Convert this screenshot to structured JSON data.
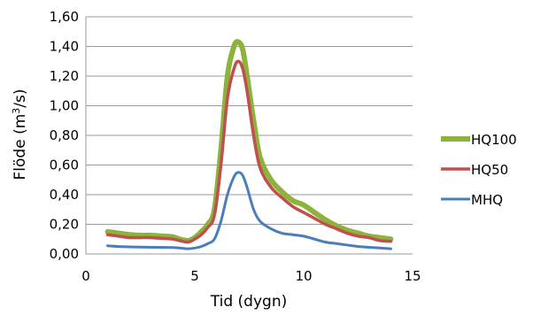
{
  "chart_data": {
    "type": "line",
    "xlabel": "Tid (dygn)",
    "ylabel_main": "Flöde (m",
    "ylabel_sup": "3",
    "ylabel_end": "/s)",
    "xlim": [
      0,
      15
    ],
    "ylim": [
      0,
      1.6
    ],
    "x_ticks": [
      "0",
      "5",
      "10",
      "15"
    ],
    "y_ticks": [
      "0,00",
      "0,20",
      "0,40",
      "0,60",
      "0,80",
      "1,00",
      "1,20",
      "1,40",
      "1,60"
    ],
    "grid": "horizontal",
    "legend_position": "right",
    "series": [
      {
        "name": "HQ100",
        "color": "#8DB33C",
        "x": [
          1,
          1.5,
          2,
          2.5,
          3,
          3.5,
          4,
          4.3,
          4.7,
          5,
          5.3,
          5.6,
          5.9,
          6.2,
          6.5,
          6.8,
          7,
          7.2,
          7.4,
          7.7,
          8,
          8.5,
          9,
          9.5,
          10,
          10.5,
          11,
          11.5,
          12,
          12.5,
          13,
          13.5,
          14
        ],
        "y": [
          0.15,
          0.14,
          0.13,
          0.125,
          0.125,
          0.12,
          0.115,
          0.1,
          0.09,
          0.11,
          0.15,
          0.2,
          0.3,
          0.7,
          1.2,
          1.4,
          1.43,
          1.38,
          1.2,
          0.9,
          0.65,
          0.5,
          0.42,
          0.36,
          0.33,
          0.28,
          0.23,
          0.19,
          0.16,
          0.14,
          0.12,
          0.11,
          0.1
        ]
      },
      {
        "name": "HQ50",
        "color": "#C0504D",
        "x": [
          1,
          1.5,
          2,
          2.5,
          3,
          3.5,
          4,
          4.3,
          4.7,
          5,
          5.3,
          5.6,
          5.9,
          6.2,
          6.5,
          6.8,
          7,
          7.2,
          7.4,
          7.7,
          8,
          8.5,
          9,
          9.5,
          10,
          10.5,
          11,
          11.5,
          12,
          12.5,
          13,
          13.5,
          14
        ],
        "y": [
          0.13,
          0.12,
          0.11,
          0.11,
          0.11,
          0.105,
          0.1,
          0.09,
          0.08,
          0.1,
          0.13,
          0.18,
          0.26,
          0.6,
          1.05,
          1.25,
          1.3,
          1.25,
          1.1,
          0.8,
          0.58,
          0.45,
          0.38,
          0.32,
          0.28,
          0.24,
          0.2,
          0.17,
          0.14,
          0.12,
          0.11,
          0.09,
          0.085
        ]
      },
      {
        "name": "MHQ",
        "color": "#4A7EBB",
        "x": [
          1,
          1.5,
          2,
          2.5,
          3,
          3.5,
          4,
          4.3,
          4.7,
          5,
          5.3,
          5.6,
          5.9,
          6.2,
          6.5,
          6.8,
          7,
          7.2,
          7.4,
          7.7,
          8,
          8.5,
          9,
          9.5,
          10,
          10.5,
          11,
          11.5,
          12,
          12.5,
          13,
          13.5,
          14
        ],
        "y": [
          0.055,
          0.05,
          0.048,
          0.046,
          0.045,
          0.044,
          0.043,
          0.04,
          0.035,
          0.04,
          0.05,
          0.07,
          0.1,
          0.22,
          0.4,
          0.52,
          0.55,
          0.53,
          0.45,
          0.3,
          0.22,
          0.17,
          0.14,
          0.13,
          0.12,
          0.1,
          0.08,
          0.07,
          0.06,
          0.05,
          0.045,
          0.04,
          0.035
        ]
      }
    ]
  }
}
